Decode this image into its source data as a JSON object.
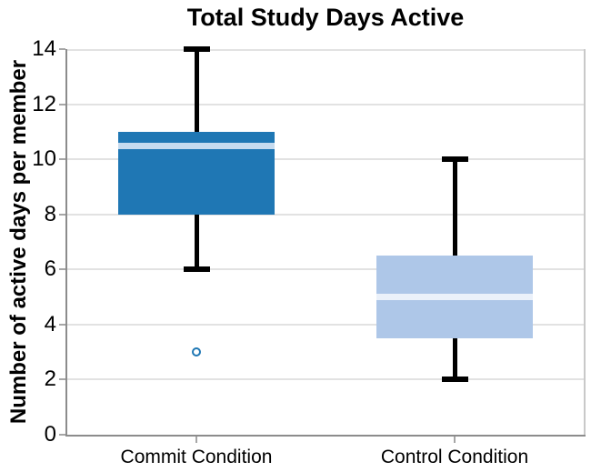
{
  "title": "Total Study Days Active",
  "chart_data": {
    "type": "boxplot",
    "title": "Total Study Days Active",
    "xlabel": "",
    "ylabel": "Number of active days per member",
    "ylim": [
      0,
      14
    ],
    "yticks": [
      0,
      2,
      4,
      6,
      8,
      10,
      12,
      14
    ],
    "grid": "horizontal gridlines at each y tick",
    "legend": "none",
    "categories": [
      "Commit Condition",
      "Control Condition"
    ],
    "series": [
      {
        "name": "Commit Condition",
        "whisker_low": 6,
        "q1": 8,
        "median": 10.5,
        "q3": 11,
        "whisker_high": 14,
        "outliers": [
          3
        ],
        "box_color": "#1f77b4",
        "median_color": "#c6dbef"
      },
      {
        "name": "Control Condition",
        "whisker_low": 2,
        "q1": 3.5,
        "median": 5,
        "q3": 6.5,
        "whisker_high": 10,
        "outliers": [],
        "box_color": "#aec7e8",
        "median_color": "#ebf1fa"
      }
    ],
    "colors": {
      "whisker": "#000000",
      "outlier_stroke": "#1f77b4",
      "gridline": "#e2e2e2",
      "left_bottom_spine": "#8c8c8c",
      "right_spine": "#c9c9c9",
      "tick_mark": "#a6a6a6",
      "text": "#000000",
      "background": "#ffffff"
    }
  }
}
